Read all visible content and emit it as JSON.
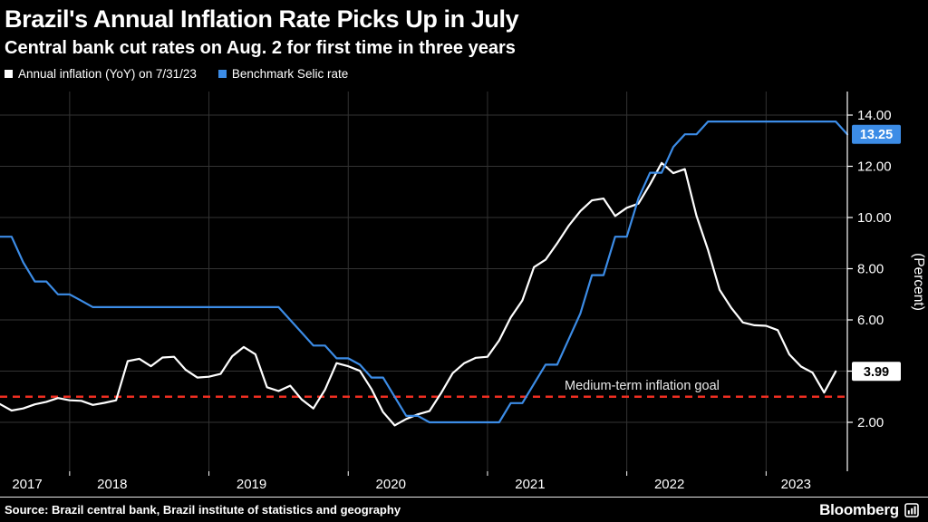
{
  "chart_data": {
    "type": "line",
    "title": "Brazil's Annual Inflation Rate Picks Up in July",
    "subtitle": "Central bank cut rates on Aug. 2 for first time in three years",
    "x_start": "2017-07",
    "x_end": "2023-08",
    "frequency": "monthly",
    "x_tick_labels": [
      "2017",
      "2018",
      "2019",
      "2020",
      "2021",
      "2022",
      "2023"
    ],
    "ylabel": "(Percent)",
    "ylim": [
      1.0,
      15.0
    ],
    "grid": true,
    "y_ticks": [
      2,
      4,
      6,
      8,
      10,
      12,
      14
    ],
    "y_axis_labels": [
      {
        "value": 14,
        "label": "14.00"
      },
      {
        "value": 12,
        "label": "12.00"
      },
      {
        "value": 10,
        "label": "10.00"
      },
      {
        "value": 8,
        "label": "8.00"
      },
      {
        "value": 6,
        "label": "6.00"
      },
      {
        "value": 2,
        "label": "2.00"
      }
    ],
    "reference_line": {
      "value": 3.0,
      "label": "Medium-term inflation goal",
      "color": "#ee2e21",
      "style": "dashed"
    },
    "series": [
      {
        "id": "inflation",
        "name": "Annual inflation (YoY) on 7/31/23",
        "color": "#ffffff",
        "end_label": "3.99",
        "badge_bg": "#ffffff",
        "badge_text": "#000000",
        "values": [
          2.71,
          2.46,
          2.54,
          2.7,
          2.8,
          2.95,
          2.86,
          2.84,
          2.68,
          2.76,
          2.86,
          4.39,
          4.48,
          4.19,
          4.53,
          4.56,
          4.05,
          3.75,
          3.78,
          3.89,
          4.58,
          4.94,
          4.66,
          3.37,
          3.22,
          3.43,
          2.89,
          2.54,
          3.27,
          4.31,
          4.19,
          4.01,
          3.3,
          2.4,
          1.88,
          2.13,
          2.31,
          2.44,
          3.14,
          3.92,
          4.31,
          4.52,
          4.56,
          5.2,
          6.1,
          6.76,
          8.06,
          8.35,
          8.99,
          9.68,
          10.25,
          10.67,
          10.74,
          10.06,
          10.38,
          10.54,
          11.3,
          12.13,
          11.73,
          11.89,
          10.07,
          8.73,
          7.17,
          6.47,
          5.9,
          5.79,
          5.77,
          5.6,
          4.65,
          4.18,
          3.94,
          3.16,
          3.99
        ]
      },
      {
        "id": "selic",
        "name": "Benchmark Selic rate",
        "color": "#3c8ce6",
        "end_label": "13.25",
        "badge_bg": "#3c8ce6",
        "badge_text": "#ffffff",
        "values": [
          9.25,
          9.25,
          8.25,
          7.5,
          7.5,
          7.0,
          7.0,
          6.75,
          6.5,
          6.5,
          6.5,
          6.5,
          6.5,
          6.5,
          6.5,
          6.5,
          6.5,
          6.5,
          6.5,
          6.5,
          6.5,
          6.5,
          6.5,
          6.5,
          6.5,
          6.0,
          5.5,
          5.0,
          5.0,
          4.5,
          4.5,
          4.25,
          3.75,
          3.75,
          3.0,
          2.25,
          2.25,
          2.0,
          2.0,
          2.0,
          2.0,
          2.0,
          2.0,
          2.0,
          2.75,
          2.75,
          3.5,
          4.25,
          4.25,
          5.25,
          6.25,
          7.75,
          7.75,
          9.25,
          9.25,
          10.75,
          11.75,
          11.75,
          12.75,
          13.25,
          13.25,
          13.75,
          13.75,
          13.75,
          13.75,
          13.75,
          13.75,
          13.75,
          13.75,
          13.75,
          13.75,
          13.75,
          13.75,
          13.25
        ]
      }
    ]
  },
  "footer": {
    "source": "Source: Brazil central bank, Brazil institute of statistics and geography",
    "brand": "Bloomberg"
  },
  "colors": {
    "background": "#000000",
    "grid": "#333333",
    "axis": "#ffffff",
    "goal_label_text": "#e9e9e9"
  }
}
